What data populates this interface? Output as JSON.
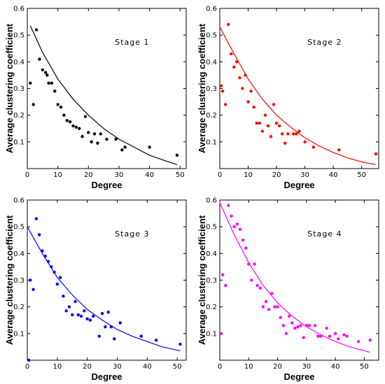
{
  "chart_data": [
    {
      "type": "scatter",
      "title": "",
      "annotation": "Stage 1",
      "xlabel": "Degree",
      "ylabel": "Average clustering coefficient",
      "xlim": [
        0,
        52
      ],
      "ylim": [
        0,
        0.6
      ],
      "xticks": [
        0,
        10,
        20,
        30,
        40,
        50
      ],
      "yticks": [
        0.1,
        0.2,
        0.3,
        0.4,
        0.5,
        0.6
      ],
      "grid": false,
      "color": "#000000",
      "points": [
        [
          1,
          0.32
        ],
        [
          2,
          0.24
        ],
        [
          3,
          0.52
        ],
        [
          4,
          0.41
        ],
        [
          5,
          0.37
        ],
        [
          6,
          0.36
        ],
        [
          6.5,
          0.35
        ],
        [
          7,
          0.32
        ],
        [
          8,
          0.32
        ],
        [
          9,
          0.29
        ],
        [
          10,
          0.24
        ],
        [
          11,
          0.23
        ],
        [
          12,
          0.2
        ],
        [
          13,
          0.18
        ],
        [
          14,
          0.175
        ],
        [
          15,
          0.16
        ],
        [
          16,
          0.155
        ],
        [
          17,
          0.15
        ],
        [
          18,
          0.12
        ],
        [
          19,
          0.195
        ],
        [
          20,
          0.135
        ],
        [
          21,
          0.1
        ],
        [
          22,
          0.13
        ],
        [
          23,
          0.095
        ],
        [
          24,
          0.13
        ],
        [
          26,
          0.11
        ],
        [
          29,
          0.11
        ],
        [
          31,
          0.07
        ],
        [
          32,
          0.08
        ],
        [
          40,
          0.08
        ],
        [
          49,
          0.05
        ]
      ],
      "curve_x": [
        1,
        5,
        10,
        15,
        20,
        25,
        30,
        35,
        40,
        45,
        49
      ],
      "curve_y": [
        0.535,
        0.435,
        0.335,
        0.26,
        0.2,
        0.15,
        0.11,
        0.08,
        0.05,
        0.03,
        0.015
      ]
    },
    {
      "type": "scatter",
      "title": "",
      "annotation": "Stage 2",
      "xlabel": "Degree",
      "ylabel": "Average clustering coefficient",
      "xlim": [
        0,
        56
      ],
      "ylim": [
        0,
        0.6
      ],
      "xticks": [
        0,
        10,
        20,
        30,
        40,
        50
      ],
      "yticks": [
        0.1,
        0.2,
        0.3,
        0.4,
        0.5,
        0.6
      ],
      "grid": false,
      "color": "#ff0000",
      "points": [
        [
          0.5,
          0.31
        ],
        [
          1,
          0.29
        ],
        [
          2,
          0.24
        ],
        [
          3,
          0.54
        ],
        [
          4,
          0.43
        ],
        [
          5,
          0.38
        ],
        [
          6,
          0.4
        ],
        [
          7,
          0.34
        ],
        [
          8,
          0.3
        ],
        [
          9,
          0.35
        ],
        [
          10,
          0.25
        ],
        [
          11,
          0.29
        ],
        [
          12,
          0.23
        ],
        [
          13,
          0.17
        ],
        [
          14,
          0.17
        ],
        [
          15,
          0.14
        ],
        [
          16,
          0.2
        ],
        [
          17,
          0.16
        ],
        [
          18,
          0.12
        ],
        [
          19,
          0.24
        ],
        [
          20,
          0.17
        ],
        [
          21,
          0.16
        ],
        [
          22,
          0.13
        ],
        [
          23,
          0.095
        ],
        [
          24,
          0.13
        ],
        [
          26,
          0.13
        ],
        [
          27,
          0.13
        ],
        [
          28,
          0.14
        ],
        [
          30,
          0.1
        ],
        [
          33,
          0.08
        ],
        [
          42,
          0.07
        ],
        [
          55,
          0.055
        ]
      ],
      "curve_x": [
        0,
        5,
        10,
        15,
        20,
        25,
        30,
        35,
        40,
        45,
        50,
        55
      ],
      "curve_y": [
        0.53,
        0.43,
        0.335,
        0.26,
        0.2,
        0.155,
        0.115,
        0.085,
        0.06,
        0.04,
        0.025,
        0.015
      ]
    },
    {
      "type": "scatter",
      "title": "",
      "annotation": "Stage 3",
      "xlabel": "Degree",
      "ylabel": "Average clustering coefficient",
      "xlim": [
        0,
        53
      ],
      "ylim": [
        0,
        0.6
      ],
      "xticks": [
        0,
        10,
        20,
        30,
        40,
        50
      ],
      "yticks": [
        0.1,
        0.2,
        0.3,
        0.4,
        0.5,
        0.6
      ],
      "grid": false,
      "color": "#0000ff",
      "points": [
        [
          0.5,
          0.0
        ],
        [
          1,
          0.3
        ],
        [
          2,
          0.265
        ],
        [
          3,
          0.53
        ],
        [
          4,
          0.47
        ],
        [
          5,
          0.41
        ],
        [
          6,
          0.39
        ],
        [
          7,
          0.37
        ],
        [
          8,
          0.35
        ],
        [
          9,
          0.33
        ],
        [
          10,
          0.285
        ],
        [
          11,
          0.31
        ],
        [
          12,
          0.24
        ],
        [
          13,
          0.185
        ],
        [
          14,
          0.2
        ],
        [
          15,
          0.17
        ],
        [
          16,
          0.22
        ],
        [
          17,
          0.17
        ],
        [
          18,
          0.165
        ],
        [
          19,
          0.185
        ],
        [
          20,
          0.155
        ],
        [
          21,
          0.15
        ],
        [
          22,
          0.165
        ],
        [
          24,
          0.09
        ],
        [
          25,
          0.175
        ],
        [
          26,
          0.125
        ],
        [
          27,
          0.18
        ],
        [
          28,
          0.125
        ],
        [
          29,
          0.08
        ],
        [
          31,
          0.14
        ],
        [
          38,
          0.09
        ],
        [
          43,
          0.075
        ],
        [
          51,
          0.06
        ]
      ],
      "curve_x": [
        0,
        5,
        10,
        15,
        20,
        25,
        30,
        35,
        40,
        45,
        51
      ],
      "curve_y": [
        0.5,
        0.4,
        0.31,
        0.245,
        0.19,
        0.15,
        0.115,
        0.09,
        0.07,
        0.05,
        0.035
      ]
    },
    {
      "type": "scatter",
      "title": "",
      "annotation": "Stage 4",
      "xlabel": "Degree",
      "ylabel": "Average clustering coefficient",
      "xlim": [
        0,
        55
      ],
      "ylim": [
        0,
        0.6
      ],
      "xticks": [
        0,
        10,
        20,
        30,
        40,
        50
      ],
      "yticks": [
        0.1,
        0.2,
        0.3,
        0.4,
        0.5,
        0.6
      ],
      "grid": false,
      "color": "#ff00ff",
      "points": [
        [
          0.5,
          0.1
        ],
        [
          1,
          0.32
        ],
        [
          2,
          0.28
        ],
        [
          3,
          0.58
        ],
        [
          4,
          0.54
        ],
        [
          5,
          0.5
        ],
        [
          6,
          0.51
        ],
        [
          7,
          0.49
        ],
        [
          8,
          0.45
        ],
        [
          9,
          0.42
        ],
        [
          10,
          0.36
        ],
        [
          11,
          0.3
        ],
        [
          12,
          0.36
        ],
        [
          13,
          0.28
        ],
        [
          14,
          0.27
        ],
        [
          15,
          0.2
        ],
        [
          16,
          0.22
        ],
        [
          17,
          0.19
        ],
        [
          18,
          0.25
        ],
        [
          19,
          0.2
        ],
        [
          20,
          0.2
        ],
        [
          21,
          0.16
        ],
        [
          22,
          0.13
        ],
        [
          23,
          0.1
        ],
        [
          24,
          0.165
        ],
        [
          25,
          0.14
        ],
        [
          26,
          0.12
        ],
        [
          27,
          0.125
        ],
        [
          28,
          0.13
        ],
        [
          29,
          0.085
        ],
        [
          30,
          0.13
        ],
        [
          31,
          0.13
        ],
        [
          33,
          0.13
        ],
        [
          34,
          0.09
        ],
        [
          35,
          0.09
        ],
        [
          37,
          0.12
        ],
        [
          38,
          0.09
        ],
        [
          40,
          0.1
        ],
        [
          41,
          0.08
        ],
        [
          43,
          0.095
        ],
        [
          44,
          0.09
        ],
        [
          48,
          0.07
        ],
        [
          52,
          0.075
        ]
      ],
      "curve_x": [
        0,
        5,
        10,
        15,
        20,
        25,
        30,
        35,
        40,
        45,
        52
      ],
      "curve_y": [
        0.59,
        0.47,
        0.365,
        0.28,
        0.215,
        0.165,
        0.125,
        0.095,
        0.07,
        0.05,
        0.03
      ]
    }
  ]
}
